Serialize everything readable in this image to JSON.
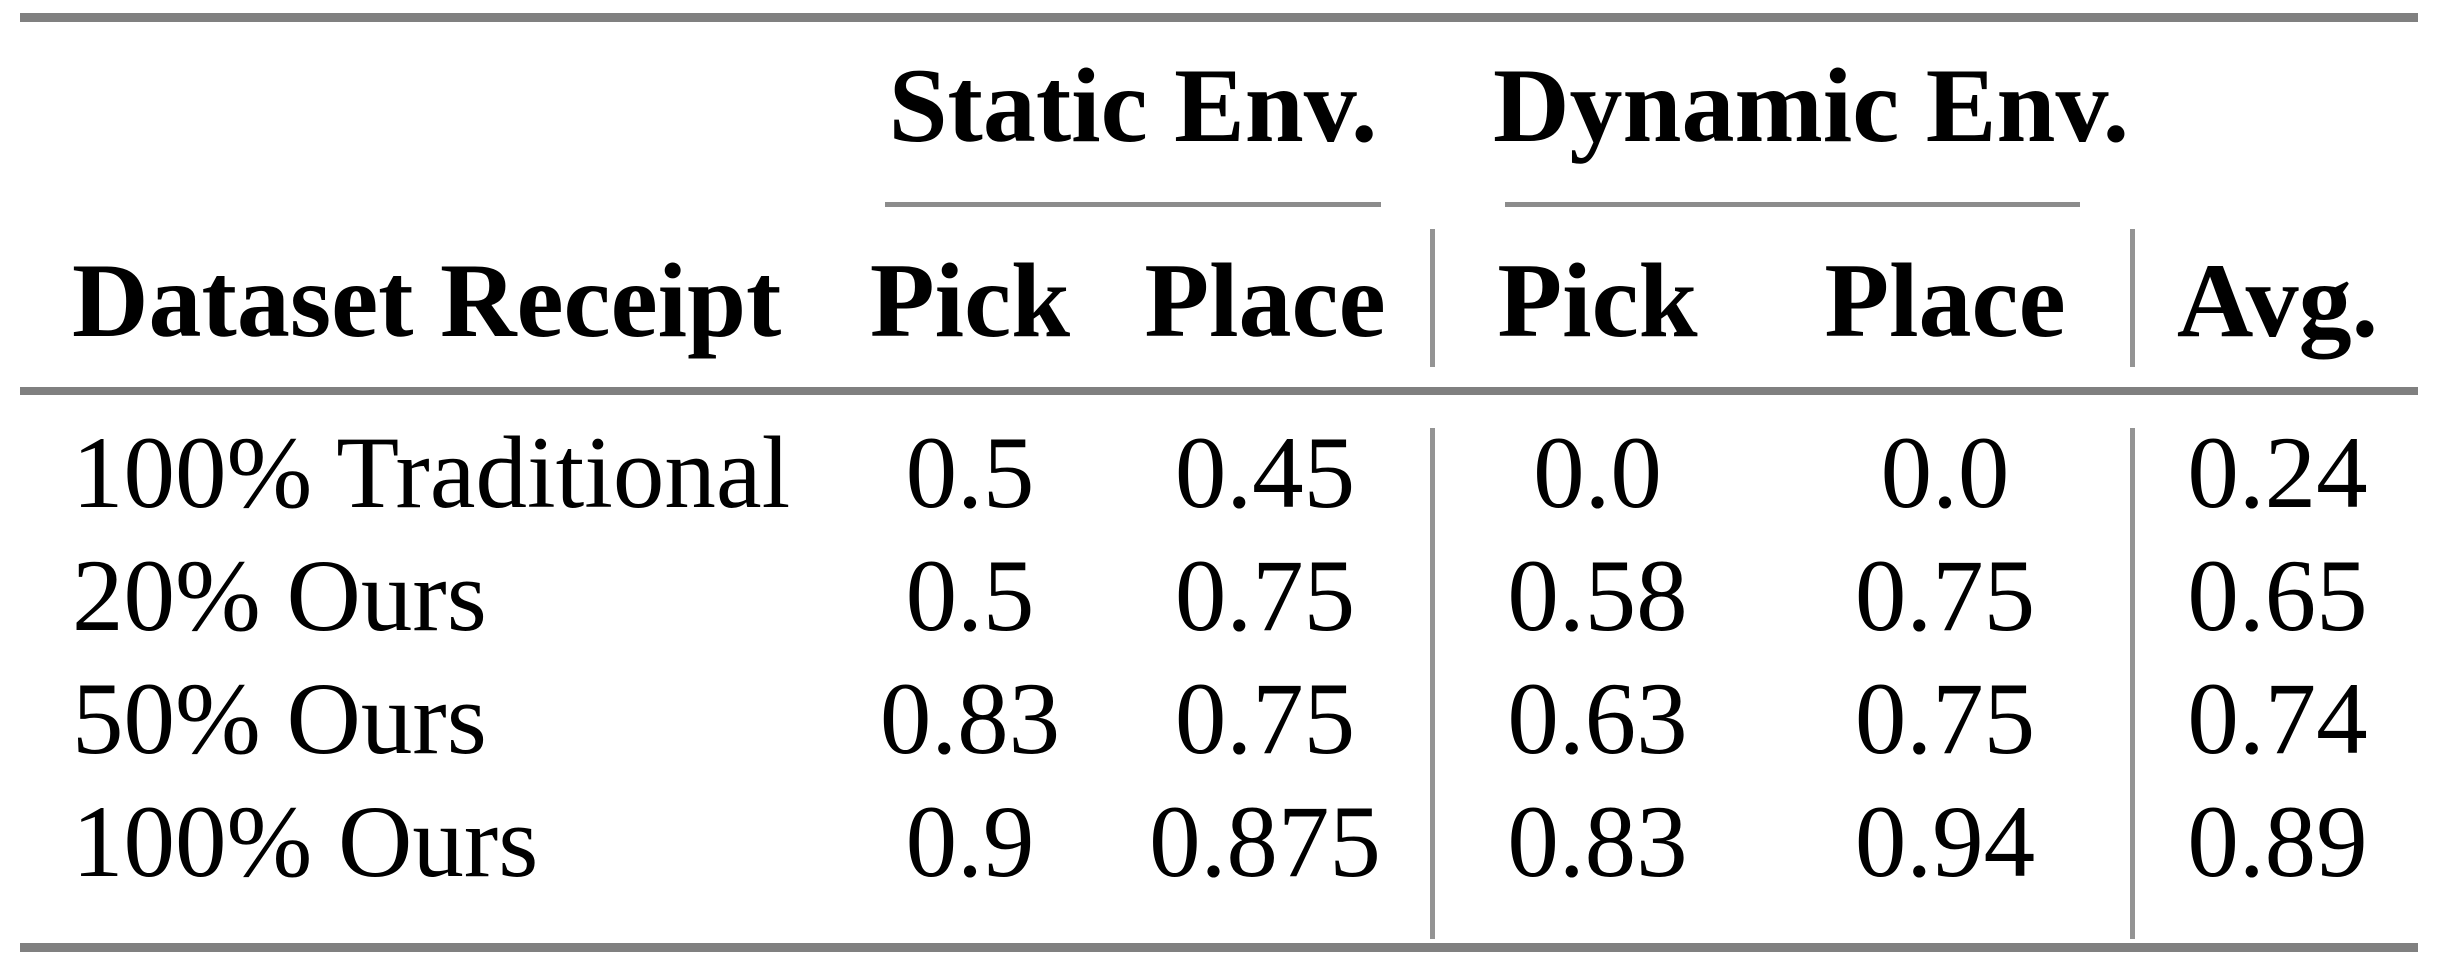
{
  "colors": {
    "rule_heavy": "#808080",
    "rule_light": "#8c8c8c",
    "rule_vertical": "#949494",
    "text": "#000000",
    "background": "#ffffff"
  },
  "header": {
    "group_static": "Static Env.",
    "group_dynamic": "Dynamic Env.",
    "dataset_col": "Dataset Receipt",
    "static_pick": "Pick",
    "static_place": "Place",
    "dynamic_pick": "Pick",
    "dynamic_place": "Place",
    "avg": "Avg."
  },
  "rows": [
    {
      "dataset": "100% Traditional",
      "static_pick": "0.5",
      "static_place": "0.45",
      "dynamic_pick": "0.0",
      "dynamic_place": "0.0",
      "avg": "0.24"
    },
    {
      "dataset": "20% Ours",
      "static_pick": "0.5",
      "static_place": "0.75",
      "dynamic_pick": "0.58",
      "dynamic_place": "0.75",
      "avg": "0.65"
    },
    {
      "dataset": "50% Ours",
      "static_pick": "0.83",
      "static_place": "0.75",
      "dynamic_pick": "0.63",
      "dynamic_place": "0.75",
      "avg": "0.74"
    },
    {
      "dataset": "100% Ours",
      "static_pick": "0.9",
      "static_place": "0.875",
      "dynamic_pick": "0.83",
      "dynamic_place": "0.94",
      "avg": "0.89"
    }
  ],
  "chart_data": {
    "type": "table",
    "column_groups": [
      {
        "label": "Static Env.",
        "columns": [
          "Pick",
          "Place"
        ]
      },
      {
        "label": "Dynamic Env.",
        "columns": [
          "Pick",
          "Place"
        ]
      }
    ],
    "columns": [
      "Dataset Receipt",
      "Pick (Static)",
      "Place (Static)",
      "Pick (Dynamic)",
      "Place (Dynamic)",
      "Avg."
    ],
    "rows": [
      [
        "100% Traditional",
        0.5,
        0.45,
        0.0,
        0.0,
        0.24
      ],
      [
        "20% Ours",
        0.5,
        0.75,
        0.58,
        0.75,
        0.65
      ],
      [
        "50% Ours",
        0.83,
        0.75,
        0.63,
        0.75,
        0.74
      ],
      [
        "100% Ours",
        0.9,
        0.875,
        0.83,
        0.94,
        0.89
      ]
    ]
  }
}
